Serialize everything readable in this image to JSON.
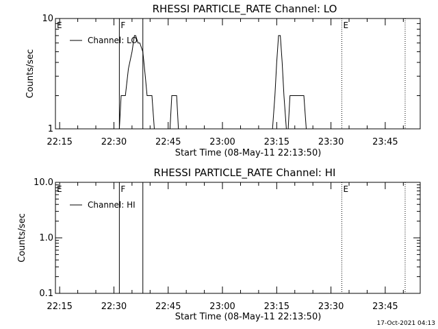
{
  "chart_data": [
    {
      "type": "line",
      "title": "RHESSI PARTICLE_RATE Channel: LO",
      "xlabel": "Start Time (08-May-11 22:13:50)",
      "ylabel": "Counts/sec",
      "yscale": "log",
      "ylim": [
        1,
        10
      ],
      "ytick_labels": [
        "1",
        "10"
      ],
      "xlim": [
        "22:13:50",
        "23:54:40"
      ],
      "xtick_labels": [
        "22:15",
        "22:30",
        "22:45",
        "23:00",
        "23:15",
        "23:30",
        "23:45"
      ],
      "legend": "top-left",
      "series": [
        {
          "name": "Channel: LO",
          "x": [
            "22:30:30",
            "22:31:30",
            "22:32:00",
            "22:33:10",
            "22:34:00",
            "22:35:00",
            "22:35:40",
            "22:36:00",
            "22:36:40",
            "22:37:10",
            "22:38:00",
            "22:38:40",
            "22:39:10",
            "22:39:40",
            "22:40:30",
            "22:41:10",
            "22:41:30",
            "22:45:30",
            "22:46:00",
            "22:46:40",
            "22:47:20",
            "22:47:50",
            "23:13:50",
            "23:14:30",
            "23:15:00",
            "23:15:30",
            "23:16:00",
            "23:16:30",
            "23:17:00",
            "23:17:40",
            "23:18:10",
            "23:18:40",
            "23:19:30",
            "23:20:10",
            "23:22:30",
            "23:23:10",
            "23:23:30"
          ],
          "y": [
            1,
            1,
            2,
            2,
            3.5,
            5,
            7,
            7,
            6,
            6,
            5,
            3,
            2,
            2,
            2,
            1,
            1,
            1,
            2,
            2,
            2,
            1,
            1,
            2,
            4,
            7,
            7,
            4,
            2,
            1,
            1,
            2,
            2,
            2,
            2,
            1,
            1
          ]
        }
      ],
      "vlines": [
        {
          "label": "E",
          "x": "22:13:50",
          "style": "dotted"
        },
        {
          "label": "F",
          "x": "22:31:30",
          "style": "solid"
        },
        {
          "label": "",
          "x": "22:38:00",
          "style": "solid"
        },
        {
          "label": "E",
          "x": "23:33:00",
          "style": "dotted"
        },
        {
          "label": "",
          "x": "23:50:30",
          "style": "dotted"
        }
      ]
    },
    {
      "type": "line",
      "title": "RHESSI PARTICLE_RATE Channel: HI",
      "xlabel": "Start Time (08-May-11 22:13:50)",
      "ylabel": "Counts/sec",
      "yscale": "log",
      "ylim": [
        0.1,
        10
      ],
      "ytick_labels": [
        "0.1",
        "1.0",
        "10.0"
      ],
      "xlim": [
        "22:13:50",
        "23:54:40"
      ],
      "xtick_labels": [
        "22:15",
        "22:30",
        "22:45",
        "23:00",
        "23:15",
        "23:30",
        "23:45"
      ],
      "legend": "top-left",
      "series": [
        {
          "name": "Channel: HI",
          "x": [],
          "y": []
        }
      ],
      "vlines": [
        {
          "label": "E",
          "x": "22:13:50",
          "style": "dotted"
        },
        {
          "label": "F",
          "x": "22:31:30",
          "style": "solid"
        },
        {
          "label": "",
          "x": "22:38:00",
          "style": "solid"
        },
        {
          "label": "E",
          "x": "23:33:00",
          "style": "dotted"
        },
        {
          "label": "",
          "x": "23:50:30",
          "style": "dotted"
        }
      ]
    }
  ],
  "footer": {
    "timestamp": "17-Oct-2021 04:13"
  }
}
